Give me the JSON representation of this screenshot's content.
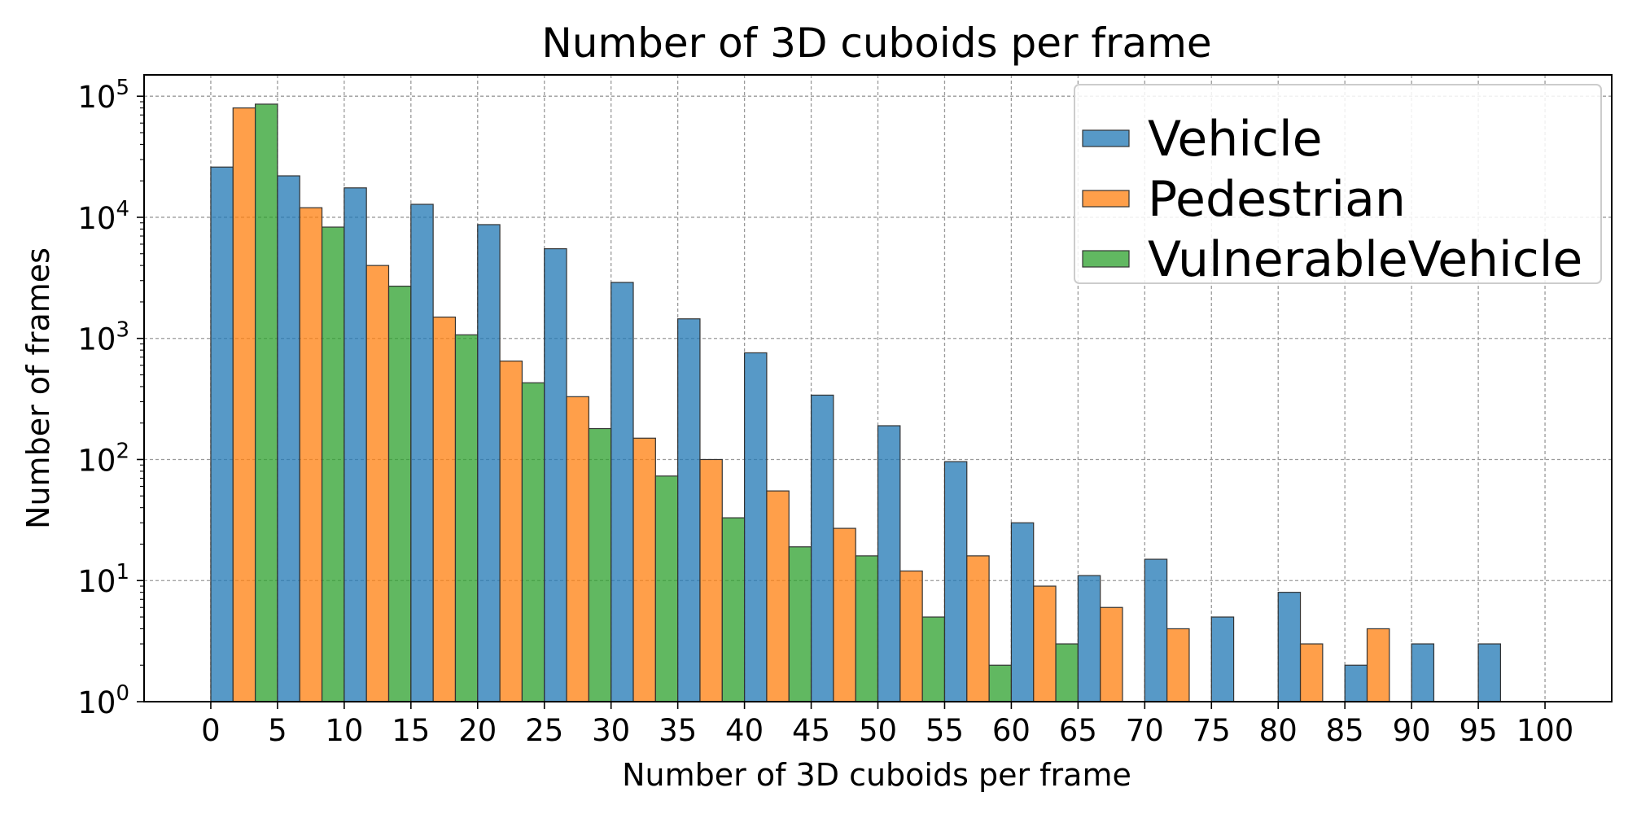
{
  "chart_data": {
    "type": "bar",
    "title": "Number of 3D cuboids per frame",
    "xlabel": "Number of 3D cuboids per frame",
    "ylabel": "Number of frames",
    "y_scale": "log",
    "ylim": [
      1,
      150000
    ],
    "xlim": [
      -5,
      105
    ],
    "x_ticks": [
      0,
      5,
      10,
      15,
      20,
      25,
      30,
      35,
      40,
      45,
      50,
      55,
      60,
      65,
      70,
      75,
      80,
      85,
      90,
      95,
      100
    ],
    "y_ticks": [
      {
        "value": 1,
        "base": "10",
        "exp": "0"
      },
      {
        "value": 10,
        "base": "10",
        "exp": "1"
      },
      {
        "value": 100,
        "base": "10",
        "exp": "2"
      },
      {
        "value": 1000,
        "base": "10",
        "exp": "3"
      },
      {
        "value": 10000,
        "base": "10",
        "exp": "4"
      },
      {
        "value": 100000,
        "base": "10",
        "exp": "5"
      }
    ],
    "grid": true,
    "legend_position": "top-right",
    "bins": [
      [
        0,
        5
      ],
      [
        5,
        10
      ],
      [
        10,
        15
      ],
      [
        15,
        20
      ],
      [
        20,
        25
      ],
      [
        25,
        30
      ],
      [
        30,
        35
      ],
      [
        35,
        40
      ],
      [
        40,
        45
      ],
      [
        45,
        50
      ],
      [
        50,
        55
      ],
      [
        55,
        60
      ],
      [
        60,
        65
      ],
      [
        65,
        70
      ],
      [
        70,
        75
      ],
      [
        75,
        80
      ],
      [
        80,
        85
      ],
      [
        85,
        90
      ],
      [
        90,
        95
      ],
      [
        95,
        100
      ]
    ],
    "series": [
      {
        "name": "Vehicle",
        "color": "#1f77b4",
        "values": [
          26000,
          22000,
          17500,
          12800,
          8700,
          5500,
          2900,
          1450,
          760,
          340,
          190,
          96,
          30,
          11,
          15,
          5,
          8,
          2,
          3,
          3
        ]
      },
      {
        "name": "Pedestrian",
        "color": "#ff7f0e",
        "values": [
          80000,
          12000,
          4000,
          1500,
          650,
          330,
          150,
          100,
          55,
          27,
          12,
          16,
          9,
          6,
          4,
          0,
          3,
          4,
          0,
          0
        ]
      },
      {
        "name": "VulnerableVehicle",
        "color": "#2ca02c",
        "values": [
          86000,
          8300,
          2700,
          1070,
          430,
          180,
          73,
          33,
          19,
          16,
          5,
          2,
          3,
          0,
          0,
          0,
          0,
          0,
          0,
          0
        ]
      }
    ]
  }
}
